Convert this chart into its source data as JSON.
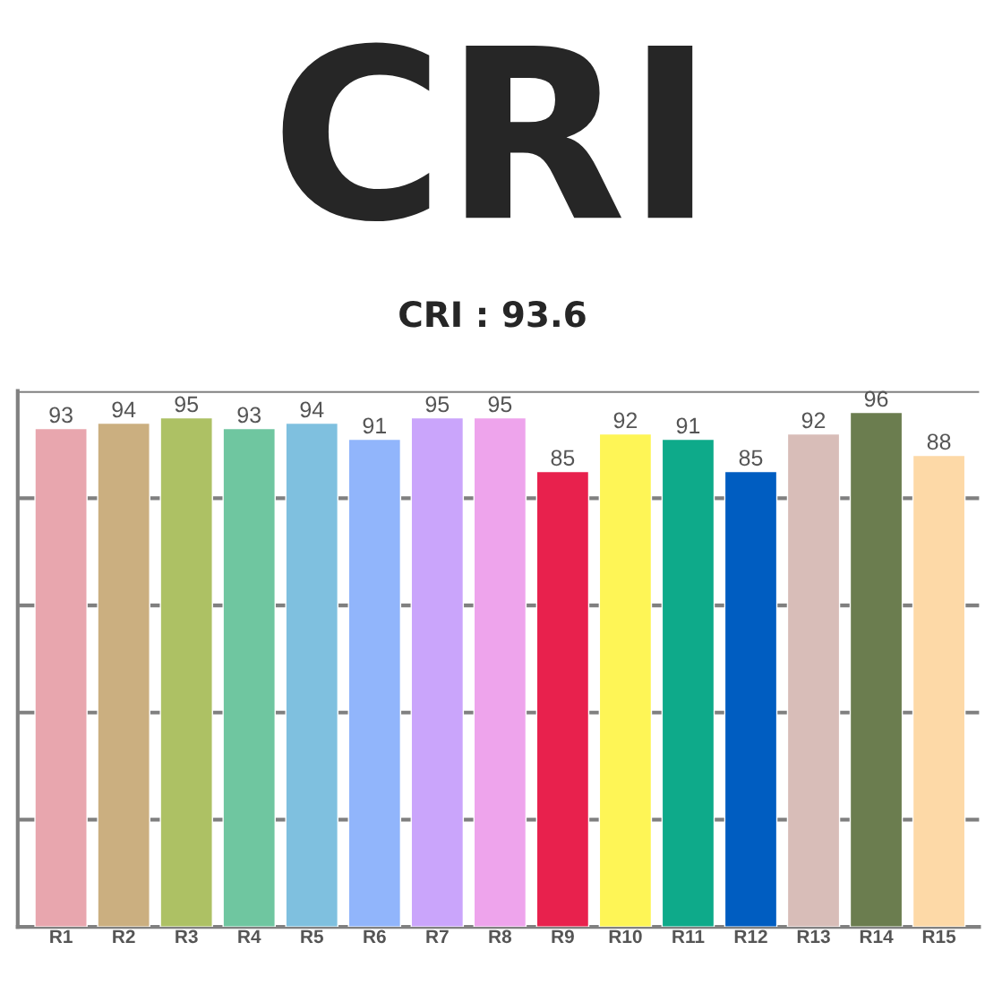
{
  "chart_data": {
    "type": "bar",
    "title": "CRI",
    "subtitle": "CRI : 93.6",
    "categories": [
      "R1",
      "R2",
      "R3",
      "R4",
      "R5",
      "R6",
      "R7",
      "R8",
      "R9",
      "R10",
      "R11",
      "R12",
      "R13",
      "R14",
      "R15"
    ],
    "values": [
      93,
      94,
      95,
      93,
      94,
      91,
      95,
      95,
      85,
      92,
      91,
      85,
      92,
      96,
      88
    ],
    "colors": [
      "#e8a6ae",
      "#cbaf80",
      "#adc164",
      "#6fc6a0",
      "#7fc0df",
      "#91b5fb",
      "#caa5fb",
      "#eea4ec",
      "#e8214d",
      "#fef556",
      "#0eaa8a",
      "#005dc1",
      "#d8bdb8",
      "#6b7d4f",
      "#fdd9a7"
    ],
    "ylim": [
      0,
      100
    ],
    "yticks": [
      {
        "value": 0,
        "label": null
      },
      {
        "value": 20,
        "label": null
      },
      {
        "value": 40,
        "label": null
      },
      {
        "value": 60,
        "label": null
      },
      {
        "value": 80,
        "label": null
      },
      {
        "value": 100,
        "label": null
      }
    ],
    "grid": "y",
    "data_labels": true
  }
}
